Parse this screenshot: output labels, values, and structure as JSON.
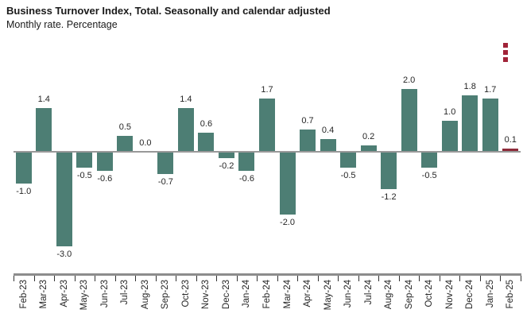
{
  "header": {
    "title": "Business Turnover Index, Total. Seasonally and calendar adjusted",
    "subtitle": "Monthly rate. Percentage"
  },
  "icons": {
    "context_menu": "vertical-dots-menu"
  },
  "colors": {
    "bar": "#4d7e74",
    "bar_highlight": "#8e2b3a",
    "axis_line": "#8c8c8c",
    "zero_line": "#999999",
    "tick": "#333333",
    "menu_icon": "#a12439",
    "text": "#262626"
  },
  "chart_data": {
    "type": "bar",
    "title": "Business Turnover Index, Total. Seasonally and calendar adjusted",
    "subtitle": "Monthly rate. Percentage",
    "xlabel": "",
    "ylabel": "Monthly rate. Percentage",
    "categories": [
      "Feb-23",
      "Mar-23",
      "Apr-23",
      "May-23",
      "Jun-23",
      "Jul-23",
      "Aug-23",
      "Sep-23",
      "Oct-23",
      "Nov-23",
      "Dec-23",
      "Jan-24",
      "Feb-24",
      "Mar-24",
      "Apr-24",
      "May-24",
      "Jun-24",
      "Jul-24",
      "Aug-24",
      "Sep-24",
      "Oct-24",
      "Nov-24",
      "Dec-24",
      "Jan-25",
      "Feb-25"
    ],
    "values": [
      -1.0,
      1.4,
      -3.0,
      -0.5,
      -0.6,
      0.5,
      0.0,
      -0.7,
      1.4,
      0.6,
      -0.2,
      -0.6,
      1.7,
      -2.0,
      0.7,
      0.4,
      -0.5,
      0.2,
      -1.2,
      2.0,
      -0.5,
      1.0,
      1.8,
      1.7,
      0.1
    ],
    "highlight_category": "Feb-25",
    "ylim": [
      -3.2,
      2.3
    ],
    "grid": false,
    "legend": false,
    "value_labels": true,
    "value_label_decimals": 1,
    "x_label_rotation": -90
  }
}
